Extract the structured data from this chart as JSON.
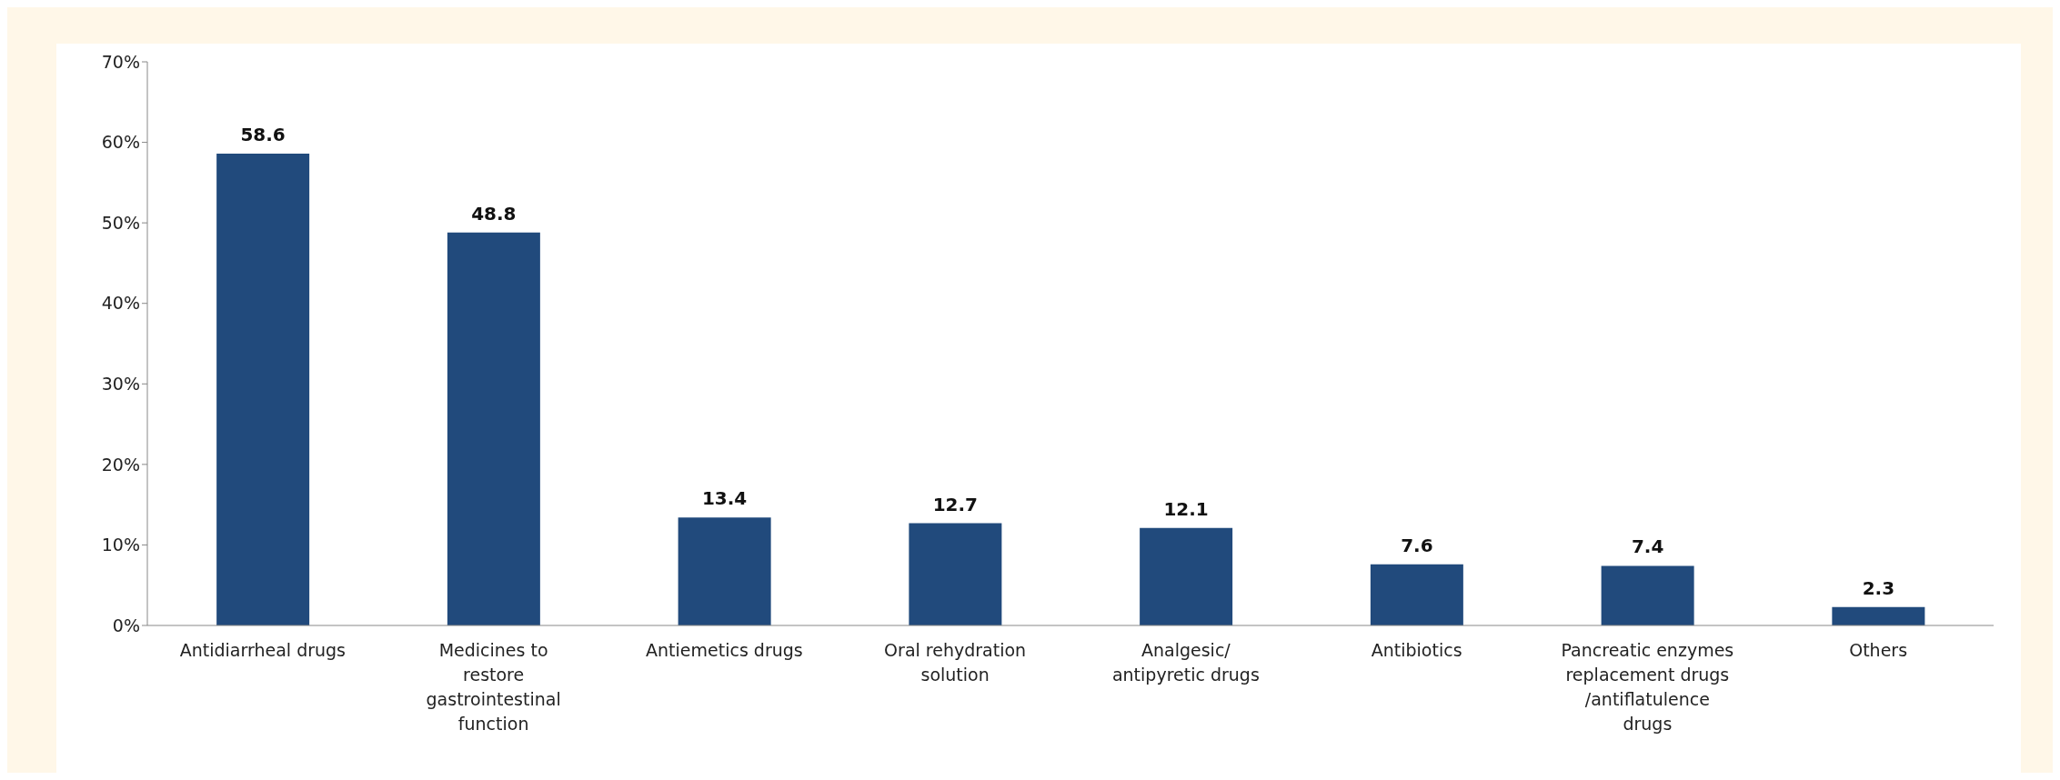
{
  "chart_data": {
    "type": "bar",
    "categories": [
      "Antidiarrheal drugs",
      "Medicines to restore gastrointestinal function",
      "Antiemetics drugs",
      "Oral rehydration solution",
      "Analgesic/ antipyretic drugs",
      "Antibiotics",
      "Pancreatic enzymes replacement drugs /antiflatulence drugs",
      "Others"
    ],
    "values": [
      58.6,
      48.8,
      13.4,
      12.7,
      12.1,
      7.6,
      7.4,
      2.3
    ],
    "color": "#214a7c",
    "ylim": [
      0,
      70
    ],
    "yticks": [
      {
        "value": 0,
        "label": "0%"
      },
      {
        "value": 10,
        "label": "10%"
      },
      {
        "value": 20,
        "label": "20%"
      },
      {
        "value": 30,
        "label": "30%"
      },
      {
        "value": 40,
        "label": "40%"
      },
      {
        "value": 50,
        "label": "50%"
      },
      {
        "value": 60,
        "label": "60%"
      },
      {
        "value": 70,
        "label": "70%"
      }
    ],
    "data_labels": true,
    "grid": false,
    "legend": false
  }
}
